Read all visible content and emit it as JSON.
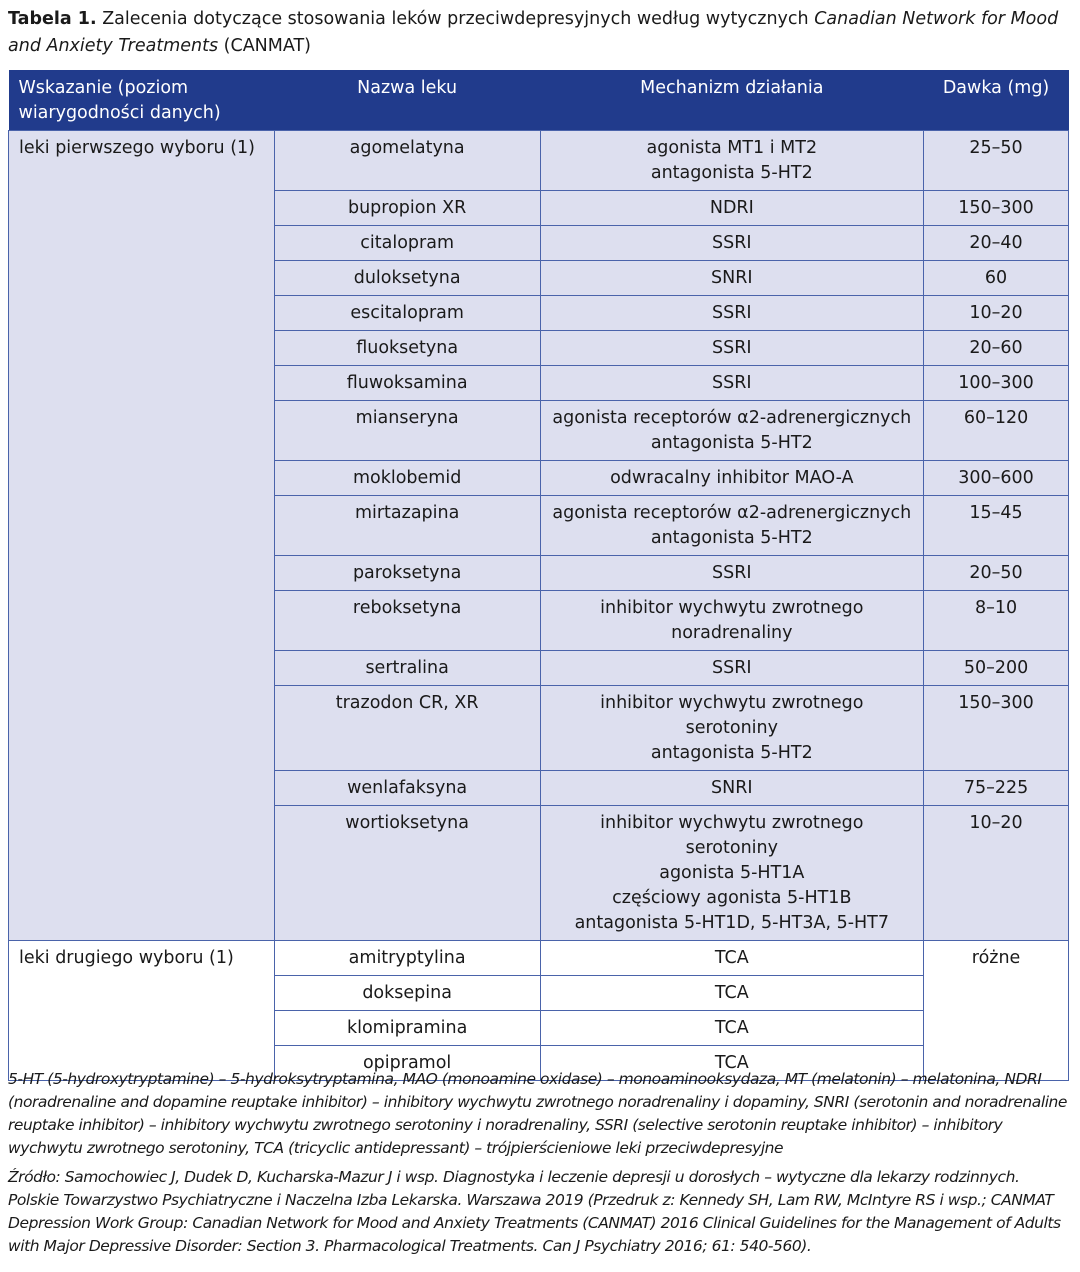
{
  "caption": {
    "label": "Tabela 1.",
    "text": " Zalecenia dotyczące stosowania leków przeciwdepresyjnych według wytycznych ",
    "italic": "Canadian Network for Mood and Anxiety Treatments",
    "suffix": " (CANMAT)"
  },
  "headers": [
    "Wskazanie (poziom wiarygodności danych)",
    "Nazwa leku",
    "Mechanizm działania",
    "Dawka (mg)"
  ],
  "colors": {
    "header_bg": "#213b8c",
    "first_line_bg": "#dddfef",
    "border": "#4a63aa"
  },
  "groups": [
    {
      "indication": "leki pierwszego wyboru (1)",
      "shared_dose": null,
      "rows": [
        {
          "drug": "agomelatyna",
          "mechanism": [
            "agonista MT1 i MT2",
            "antagonista 5-HT2"
          ],
          "dose": "25–50"
        },
        {
          "drug": "bupropion XR",
          "mechanism": [
            "NDRI"
          ],
          "dose": "150–300"
        },
        {
          "drug": "citalopram",
          "mechanism": [
            "SSRI"
          ],
          "dose": "20–40"
        },
        {
          "drug": "duloksetyna",
          "mechanism": [
            "SNRI"
          ],
          "dose": "60"
        },
        {
          "drug": "escitalopram",
          "mechanism": [
            "SSRI"
          ],
          "dose": "10–20"
        },
        {
          "drug": "fluoksetyna",
          "mechanism": [
            "SSRI"
          ],
          "dose": "20–60"
        },
        {
          "drug": "fluwoksamina",
          "mechanism": [
            "SSRI"
          ],
          "dose": "100–300"
        },
        {
          "drug": "mianseryna",
          "mechanism": [
            "agonista receptorów α2-adrenergicznych",
            "antagonista 5-HT2"
          ],
          "dose": "60–120"
        },
        {
          "drug": "moklobemid",
          "mechanism": [
            "odwracalny inhibitor MAO-A"
          ],
          "dose": "300–600"
        },
        {
          "drug": "mirtazapina",
          "mechanism": [
            "agonista receptorów α2-adrenergicznych",
            "antagonista 5-HT2"
          ],
          "dose": "15–45"
        },
        {
          "drug": "paroksetyna",
          "mechanism": [
            "SSRI"
          ],
          "dose": "20–50"
        },
        {
          "drug": "reboksetyna",
          "mechanism": [
            "inhibitor wychwytu zwrotnego",
            "noradrenaliny"
          ],
          "dose": "8–10"
        },
        {
          "drug": "sertralina",
          "mechanism": [
            "SSRI"
          ],
          "dose": "50–200"
        },
        {
          "drug": "trazodon CR, XR",
          "mechanism": [
            "inhibitor wychwytu zwrotnego",
            "serotoniny",
            "antagonista 5-HT2"
          ],
          "dose": "150–300"
        },
        {
          "drug": "wenlafaksyna",
          "mechanism": [
            "SNRI"
          ],
          "dose": "75–225"
        },
        {
          "drug": "wortioksetyna",
          "mechanism": [
            "inhibitor wychwytu zwrotnego",
            "serotoniny",
            "agonista 5-HT1A",
            "częściowy agonista 5-HT1B",
            "antagonista 5-HT1D, 5-HT3A, 5-HT7"
          ],
          "dose": "10–20"
        }
      ]
    },
    {
      "indication": "leki drugiego wyboru (1)",
      "shared_dose": "różne",
      "rows": [
        {
          "drug": "amitryptylina",
          "mechanism": [
            "TCA"
          ]
        },
        {
          "drug": "doksepina",
          "mechanism": [
            "TCA"
          ]
        },
        {
          "drug": "klomipramina",
          "mechanism": [
            "TCA"
          ]
        },
        {
          "drug": "opipramol",
          "mechanism": [
            "TCA"
          ]
        }
      ]
    }
  ],
  "abbreviations": "5-HT (5-hydroxytryptamine) – 5-hydroksytryptamina, MAO (monoamine oxidase) – monoaminooksydaza, MT (melatonin) – melatonina, NDRI (noradrenaline and dopamine reuptake inhibitor) – inhibitory wychwytu zwrotnego noradrenaliny i dopaminy, SNRI (serotonin and noradrenaline reuptake inhibitor) – inhibitory wychwytu zwrotnego serotoniny i noradrenaliny, SSRI (selective serotonin reuptake inhibitor) – inhibitory wychwytu zwrotnego serotoniny, TCA (tricyclic antidepressant) – trójpierścieniowe leki przeciwdepresyjne",
  "source": "Źródło: Samochowiec J, Dudek D, Kucharska-Mazur J i wsp. Diagnostyka i leczenie depresji u dorosłych – wytyczne dla lekarzy rodzinnych. Polskie Towarzystwo Psychiatryczne i Naczelna Izba Lekarska. Warszawa 2019 (Przedruk z: Kennedy SH, Lam RW, McIntyre RS i wsp.; CANMAT Depression Work Group: Canadian Network for Mood and Anxiety Treatments (CANMAT) 2016 Clinical Guidelines for the Management of Adults with Major Depressive Disorder: Section 3. Pharmacological Treatments. Can J Psychiatry 2016; 61: 540-560)."
}
